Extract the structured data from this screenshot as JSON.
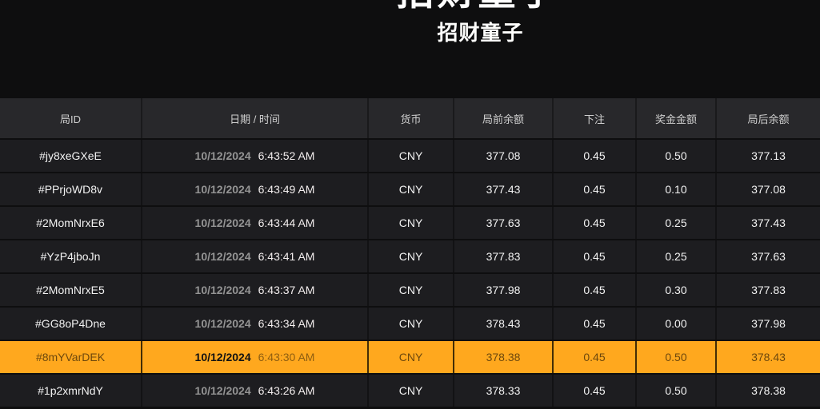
{
  "banner": {
    "logo_text": "招财童子",
    "subtitle": "招财童子"
  },
  "colors": {
    "highlight": "#FFA81E",
    "row_bg": "#1D1D20",
    "header_bg": "#28282B",
    "page_bg": "#0E0E0F"
  },
  "table": {
    "columns": [
      "局ID",
      "日期 / 时间",
      "货币",
      "局前余额",
      "下注",
      "奖金金额",
      "局后余额"
    ],
    "rows": [
      {
        "id": "#jy8xeGXeE",
        "date": "10/12/2024",
        "time": "6:43:52 AM",
        "currency": "CNY",
        "balance_before": "377.08",
        "bet": "0.45",
        "win": "0.50",
        "balance_after": "377.13",
        "highlighted": false
      },
      {
        "id": "#PPrjoWD8v",
        "date": "10/12/2024",
        "time": "6:43:49 AM",
        "currency": "CNY",
        "balance_before": "377.43",
        "bet": "0.45",
        "win": "0.10",
        "balance_after": "377.08",
        "highlighted": false
      },
      {
        "id": "#2MomNrxE6",
        "date": "10/12/2024",
        "time": "6:43:44 AM",
        "currency": "CNY",
        "balance_before": "377.63",
        "bet": "0.45",
        "win": "0.25",
        "balance_after": "377.43",
        "highlighted": false
      },
      {
        "id": "#YzP4jboJn",
        "date": "10/12/2024",
        "time": "6:43:41 AM",
        "currency": "CNY",
        "balance_before": "377.83",
        "bet": "0.45",
        "win": "0.25",
        "balance_after": "377.63",
        "highlighted": false
      },
      {
        "id": "#2MomNrxE5",
        "date": "10/12/2024",
        "time": "6:43:37 AM",
        "currency": "CNY",
        "balance_before": "377.98",
        "bet": "0.45",
        "win": "0.30",
        "balance_after": "377.83",
        "highlighted": false
      },
      {
        "id": "#GG8oP4Dne",
        "date": "10/12/2024",
        "time": "6:43:34 AM",
        "currency": "CNY",
        "balance_before": "378.43",
        "bet": "0.45",
        "win": "0.00",
        "balance_after": "377.98",
        "highlighted": false
      },
      {
        "id": "#8mYVarDEK",
        "date": "10/12/2024",
        "time": "6:43:30 AM",
        "currency": "CNY",
        "balance_before": "378.38",
        "bet": "0.45",
        "win": "0.50",
        "balance_after": "378.43",
        "highlighted": true
      },
      {
        "id": "#1p2xmrNdY",
        "date": "10/12/2024",
        "time": "6:43:26 AM",
        "currency": "CNY",
        "balance_before": "378.33",
        "bet": "0.45",
        "win": "0.50",
        "balance_after": "378.38",
        "highlighted": false
      }
    ]
  }
}
